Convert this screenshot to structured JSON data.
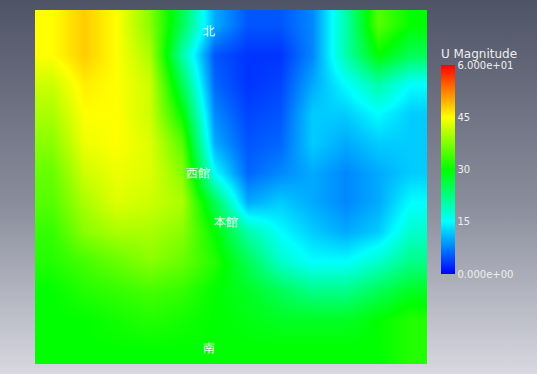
{
  "chart_data": {
    "type": "heatmap",
    "tick_labels": false,
    "annotations": [
      "北",
      "西館",
      "本館",
      "南"
    ],
    "colorbar": {
      "title": "U Magnitude",
      "range": [
        0,
        60
      ],
      "ticks": [
        {
          "value": 0,
          "label": "0.000e+00"
        },
        15,
        30,
        45,
        {
          "value": 60,
          "label": "6.000e+01"
        }
      ]
    },
    "cells": [
      [
        45,
        48,
        45,
        38,
        25,
        10,
        5,
        5,
        8,
        20,
        35,
        30
      ],
      [
        45,
        48,
        45,
        40,
        20,
        5,
        3,
        3,
        8,
        20,
        30,
        25
      ],
      [
        42,
        46,
        45,
        42,
        25,
        6,
        3,
        4,
        10,
        15,
        20,
        15
      ],
      [
        40,
        45,
        45,
        42,
        30,
        8,
        4,
        5,
        12,
        12,
        15,
        12
      ],
      [
        38,
        44,
        45,
        43,
        35,
        10,
        5,
        6,
        12,
        10,
        12,
        12
      ],
      [
        36,
        42,
        44,
        43,
        38,
        15,
        6,
        8,
        10,
        8,
        10,
        12
      ],
      [
        35,
        40,
        43,
        42,
        40,
        25,
        10,
        12,
        10,
        8,
        10,
        15
      ],
      [
        33,
        38,
        40,
        40,
        38,
        30,
        20,
        15,
        12,
        10,
        12,
        18
      ],
      [
        32,
        34,
        36,
        38,
        36,
        32,
        25,
        18,
        15,
        15,
        18,
        22
      ],
      [
        30,
        32,
        33,
        34,
        33,
        30,
        28,
        25,
        22,
        22,
        25,
        28
      ],
      [
        30,
        30,
        31,
        32,
        31,
        30,
        29,
        28,
        28,
        28,
        30,
        32
      ],
      [
        30,
        30,
        30,
        30,
        30,
        30,
        30,
        30,
        30,
        30,
        30,
        32
      ]
    ]
  }
}
